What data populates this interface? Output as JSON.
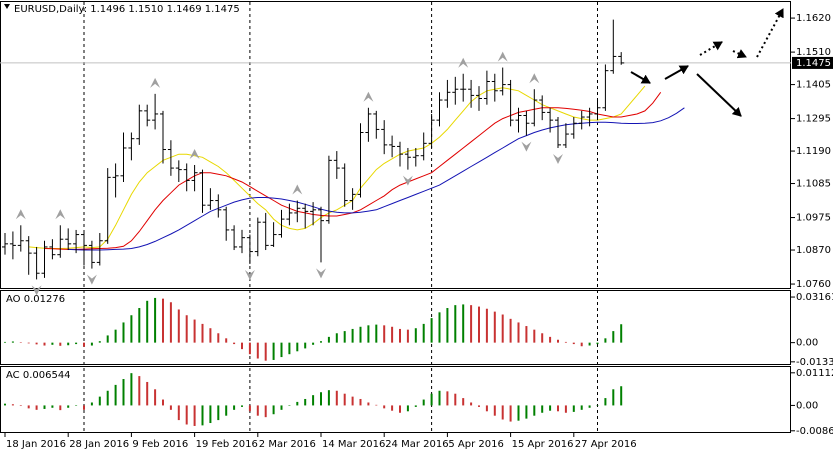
{
  "chart_data": [
    {
      "type": "ohlc",
      "title": "EURUSD,Daily: 1.1496 1.1510 1.1469 1.1475",
      "categories": [
        "18 Jan 2016",
        null,
        null,
        null,
        null,
        null,
        null,
        null,
        "28 Jan 2016",
        null,
        null,
        null,
        null,
        null,
        null,
        null,
        "9 Feb 2016",
        null,
        null,
        null,
        null,
        null,
        null,
        null,
        "19 Feb 2016",
        null,
        null,
        null,
        null,
        null,
        null,
        null,
        "2 Mar 2016",
        null,
        null,
        null,
        null,
        null,
        null,
        null,
        "14 Mar 2016",
        null,
        null,
        null,
        null,
        null,
        null,
        null,
        "24 Mar 2016",
        null,
        null,
        null,
        null,
        null,
        null,
        null,
        "5 Apr 2016",
        null,
        null,
        null,
        null,
        null,
        null,
        null,
        "15 Apr 2016",
        null,
        null,
        null,
        null,
        null,
        null,
        null,
        "27 Apr 2016",
        null,
        null,
        null,
        null,
        null,
        null
      ],
      "bars": [
        [
          1.088,
          1.0925,
          1.0855,
          1.089
        ],
        [
          1.089,
          1.093,
          1.084,
          1.0885
        ],
        [
          1.0885,
          1.095,
          1.0865,
          1.09
        ],
        [
          1.09,
          1.0915,
          1.079,
          1.086
        ],
        [
          1.086,
          1.088,
          1.0775,
          1.0795
        ],
        [
          1.0795,
          1.09,
          1.078,
          1.088
        ],
        [
          1.088,
          1.0905,
          1.084,
          1.0855
        ],
        [
          1.0855,
          1.095,
          1.0845,
          1.0905
        ],
        [
          1.0905,
          1.094,
          1.087,
          1.089
        ],
        [
          1.089,
          1.0935,
          1.086,
          1.092
        ],
        [
          1.092,
          1.093,
          1.082,
          1.0885
        ],
        [
          1.0885,
          1.09,
          1.081,
          1.083
        ],
        [
          1.083,
          1.0925,
          1.082,
          1.09
        ],
        [
          1.09,
          1.1135,
          1.089,
          1.1105
        ],
        [
          1.1105,
          1.115,
          1.104,
          1.111
        ],
        [
          1.111,
          1.125,
          1.109,
          1.12
        ],
        [
          1.12,
          1.125,
          1.116,
          1.123
        ],
        [
          1.123,
          1.134,
          1.121,
          1.132
        ],
        [
          1.132,
          1.134,
          1.127,
          1.129
        ],
        [
          1.129,
          1.1375,
          1.126,
          1.131
        ],
        [
          1.131,
          1.132,
          1.115,
          1.1195
        ],
        [
          1.1195,
          1.1225,
          1.111,
          1.1135
        ],
        [
          1.1135,
          1.116,
          1.109,
          1.113
        ],
        [
          1.113,
          1.115,
          1.106,
          1.1095
        ],
        [
          1.1095,
          1.1145,
          1.106,
          1.112
        ],
        [
          1.112,
          1.113,
          1.099,
          1.1015
        ],
        [
          1.1015,
          1.107,
          1.1,
          1.103
        ],
        [
          1.103,
          1.105,
          1.0975,
          1.1
        ],
        [
          1.1,
          1.101,
          1.09,
          1.0935
        ],
        [
          1.0935,
          1.095,
          1.087,
          1.088
        ],
        [
          1.088,
          1.0935,
          1.086,
          1.091
        ],
        [
          1.091,
          1.092,
          1.0825,
          1.0865
        ],
        [
          1.0865,
          1.0975,
          1.085,
          1.096
        ],
        [
          1.096,
          1.099,
          1.087,
          1.0885
        ],
        [
          1.0885,
          1.096,
          1.088,
          1.092
        ],
        [
          1.092,
          1.1,
          1.091,
          1.097
        ],
        [
          1.097,
          1.102,
          1.095,
          1.099
        ],
        [
          1.099,
          1.103,
          1.096,
          1.1005
        ],
        [
          1.1005,
          1.102,
          1.094,
          1.0995
        ],
        [
          1.0995,
          1.1025,
          1.095,
          1.1
        ],
        [
          1.1,
          1.101,
          1.083,
          1.0965
        ],
        [
          1.0965,
          1.1175,
          1.0955,
          1.116
        ],
        [
          1.116,
          1.119,
          1.11,
          1.1135
        ],
        [
          1.1135,
          1.115,
          1.101,
          1.103
        ],
        [
          1.103,
          1.107,
          1.1,
          1.105
        ],
        [
          1.105,
          1.128,
          1.104,
          1.125
        ],
        [
          1.125,
          1.133,
          1.122,
          1.131
        ],
        [
          1.131,
          1.132,
          1.123,
          1.126
        ],
        [
          1.126,
          1.129,
          1.118,
          1.121
        ],
        [
          1.121,
          1.124,
          1.117,
          1.1205
        ],
        [
          1.1205,
          1.122,
          1.114,
          1.118
        ],
        [
          1.118,
          1.12,
          1.113,
          1.117
        ],
        [
          1.117,
          1.12,
          1.114,
          1.1175
        ],
        [
          1.1175,
          1.125,
          1.116,
          1.1215
        ],
        [
          1.1215,
          1.131,
          1.12,
          1.129
        ],
        [
          1.129,
          1.138,
          1.127,
          1.1355
        ],
        [
          1.1355,
          1.142,
          1.133,
          1.138
        ],
        [
          1.138,
          1.143,
          1.134,
          1.139
        ],
        [
          1.139,
          1.144,
          1.135,
          1.139
        ],
        [
          1.139,
          1.142,
          1.133,
          1.137
        ],
        [
          1.137,
          1.14,
          1.132,
          1.136
        ],
        [
          1.136,
          1.145,
          1.134,
          1.1415
        ],
        [
          1.1415,
          1.144,
          1.135,
          1.1385
        ],
        [
          1.1385,
          1.146,
          1.137,
          1.1405
        ],
        [
          1.1405,
          1.142,
          1.127,
          1.129
        ],
        [
          1.129,
          1.133,
          1.125,
          1.1305
        ],
        [
          1.1305,
          1.132,
          1.124,
          1.128
        ],
        [
          1.128,
          1.139,
          1.127,
          1.1355
        ],
        [
          1.1355,
          1.137,
          1.129,
          1.1315
        ],
        [
          1.1315,
          1.133,
          1.125,
          1.129
        ],
        [
          1.129,
          1.13,
          1.12,
          1.121
        ],
        [
          1.121,
          1.128,
          1.12,
          1.1245
        ],
        [
          1.1245,
          1.13,
          1.123,
          1.128
        ],
        [
          1.128,
          1.132,
          1.126,
          1.13
        ],
        [
          1.13,
          1.133,
          1.127,
          1.131
        ],
        [
          1.131,
          1.136,
          1.129,
          1.133
        ],
        [
          1.133,
          1.147,
          1.132,
          1.145
        ],
        [
          1.145,
          1.1615,
          1.144,
          1.1496
        ],
        [
          1.1496,
          1.151,
          1.1469,
          1.1475
        ]
      ],
      "bar_color": "#000000",
      "bid": 1.1475,
      "ylim": [
        1.0744,
        1.1672
      ],
      "yticks": [
        {
          "value": 1.162,
          "label": "1.1620"
        },
        {
          "value": 1.151,
          "label": "1.1510"
        },
        1.1405,
        1.1295,
        {
          "value": 1.119,
          "label": "1.1190"
        },
        1.1085,
        1.0975,
        {
          "value": 1.087,
          "label": "1.0870"
        },
        {
          "value": 1.076,
          "label": "1.0760"
        }
      ],
      "separators": [
        10,
        31,
        54,
        75
      ],
      "lines": [
        {
          "color": "#e8d800",
          "shift": 3,
          "values": [
            1.088,
            1.0878,
            1.0876,
            1.0875,
            1.0875,
            1.0876,
            1.0878,
            1.088,
            1.0878,
            1.088,
            1.0905,
            1.095,
            1.1,
            1.105,
            1.109,
            1.112,
            1.114,
            1.116,
            1.117,
            1.118,
            1.118,
            1.1175,
            1.117,
            1.1155,
            1.114,
            1.112,
            1.1095,
            1.107,
            1.1045,
            1.102,
            1.1,
            1.097,
            1.095,
            1.094,
            1.0935,
            1.094,
            1.0955,
            1.0975,
            1.099,
            1.1,
            1.1015,
            1.103,
            1.107,
            1.11,
            1.113,
            1.115,
            1.1165,
            1.118,
            1.119,
            1.1195,
            1.12,
            1.1215,
            1.1235,
            1.126,
            1.129,
            1.132,
            1.135,
            1.137,
            1.1385,
            1.139,
            1.1395,
            1.139,
            1.1385,
            1.137,
            1.1355,
            1.134,
            1.133,
            1.132,
            1.131,
            1.13,
            1.1295,
            1.129,
            1.129,
            1.1295,
            1.13,
            1.131,
            1.134,
            1.137,
            1.14
          ]
        },
        {
          "color": "#e00000",
          "shift": 5,
          "values": [
            1.0875,
            1.0874,
            1.0873,
            1.0872,
            1.0872,
            1.0873,
            1.0874,
            1.0875,
            1.0876,
            1.0878,
            1.0882,
            1.09,
            1.093,
            1.0965,
            1.1,
            1.103,
            1.1055,
            1.108,
            1.1095,
            1.111,
            1.112,
            1.112,
            1.1115,
            1.111,
            1.11,
            1.109,
            1.1075,
            1.106,
            1.1045,
            1.103,
            1.1015,
            1.1005,
            1.0995,
            1.099,
            1.0985,
            1.0982,
            1.098,
            1.098,
            1.0985,
            1.099,
            1.1,
            1.1015,
            1.103,
            1.1045,
            1.1065,
            1.108,
            1.109,
            1.11,
            1.111,
            1.112,
            1.114,
            1.116,
            1.118,
            1.12,
            1.122,
            1.124,
            1.126,
            1.128,
            1.1295,
            1.1305,
            1.1315,
            1.132,
            1.1325,
            1.133,
            1.133,
            1.133,
            1.1328,
            1.1325,
            1.1322,
            1.1318,
            1.131,
            1.1305,
            1.13,
            1.13,
            1.1305,
            1.131,
            1.132,
            1.1345,
            1.138
          ]
        },
        {
          "color": "#1414b4",
          "shift": 8,
          "values": [
            1.0872,
            1.0871,
            1.087,
            1.087,
            1.087,
            1.0871,
            1.0872,
            1.0873,
            1.0875,
            1.088,
            1.0888,
            1.0898,
            1.091,
            1.0922,
            1.0935,
            1.095,
            1.0965,
            1.098,
            1.0995,
            1.1005,
            1.1015,
            1.1025,
            1.1032,
            1.1038,
            1.104,
            1.104,
            1.1038,
            1.1035,
            1.103,
            1.1025,
            1.1018,
            1.101,
            1.1002,
            1.0996,
            1.0992,
            1.099,
            1.099,
            1.0992,
            1.0996,
            1.1,
            1.101,
            1.102,
            1.103,
            1.104,
            1.105,
            1.106,
            1.107,
            1.108,
            1.1095,
            1.111,
            1.1125,
            1.114,
            1.1155,
            1.117,
            1.1185,
            1.12,
            1.1215,
            1.123,
            1.124,
            1.125,
            1.1258,
            1.1265,
            1.127,
            1.1275,
            1.1278,
            1.128,
            1.1282,
            1.1283,
            1.1283,
            1.1282,
            1.128,
            1.1279,
            1.1279,
            1.128,
            1.1282,
            1.1288,
            1.1298,
            1.1312,
            1.133
          ]
        }
      ],
      "fractal_color": "#a0a0a0",
      "fractals_up": [
        {
          "bar": 2,
          "value": 1.095
        },
        {
          "bar": 7,
          "value": 1.095
        },
        {
          "bar": 19,
          "value": 1.1375
        },
        {
          "bar": 24,
          "value": 1.1145
        },
        {
          "bar": 37,
          "value": 1.103
        },
        {
          "bar": 46,
          "value": 1.133
        },
        {
          "bar": 58,
          "value": 1.144
        },
        {
          "bar": 63,
          "value": 1.146
        },
        {
          "bar": 67,
          "value": 1.139
        }
      ],
      "fractals_down": [
        {
          "bar": 4,
          "value": 1.0775
        },
        {
          "bar": 11,
          "value": 1.081
        },
        {
          "bar": 31,
          "value": 1.0825
        },
        {
          "bar": 40,
          "value": 1.083
        },
        {
          "bar": 51,
          "value": 1.113
        },
        {
          "bar": 66,
          "value": 1.124
        },
        {
          "bar": 70,
          "value": 1.12
        }
      ]
    },
    {
      "type": "histogram",
      "title": "AO 0.01276",
      "values": [
        0.0005,
        0.0008,
        0.0003,
        -0.0005,
        -0.0012,
        -0.002,
        -0.0015,
        -0.0022,
        -0.0018,
        -0.001,
        -0.0028,
        -0.002,
        0.001,
        0.005,
        0.009,
        0.014,
        0.019,
        0.024,
        0.029,
        0.031,
        0.0305,
        0.028,
        0.023,
        0.019,
        0.016,
        0.013,
        0.01,
        0.0065,
        0.003,
        -0.001,
        -0.0045,
        -0.008,
        -0.011,
        -0.0125,
        -0.012,
        -0.01,
        -0.008,
        -0.006,
        -0.004,
        -0.0015,
        0.001,
        0.004,
        0.0065,
        0.008,
        0.0095,
        0.011,
        0.012,
        0.0125,
        0.012,
        0.011,
        0.0095,
        0.009,
        0.01,
        0.013,
        0.017,
        0.021,
        0.024,
        0.026,
        0.0265,
        0.026,
        0.025,
        0.0235,
        0.0215,
        0.0195,
        0.0165,
        0.014,
        0.0115,
        0.009,
        0.0065,
        0.004,
        0.002,
        0.0005,
        -0.001,
        -0.0025,
        -0.002,
        -0.001,
        0.003,
        0.008,
        0.01276
      ],
      "ylim": [
        -0.0155,
        0.0358
      ],
      "yticks": [
        0.03161,
        {
          "value": 0,
          "label": "0.00"
        },
        -0.0133
      ],
      "rise_color": "#008000",
      "fall_color": "#c83232"
    },
    {
      "type": "histogram",
      "title": "AC 0.006544",
      "values": [
        0.0006,
        0.0004,
        -0.0002,
        -0.001,
        -0.0015,
        -0.0012,
        -0.0008,
        -0.0016,
        -0.0008,
        0.0,
        -0.0015,
        0.001,
        0.003,
        0.005,
        0.007,
        0.009,
        0.011,
        0.01,
        0.008,
        0.0055,
        0.002,
        -0.0015,
        -0.005,
        -0.0065,
        -0.007,
        -0.0068,
        -0.006,
        -0.005,
        -0.0035,
        -0.0015,
        -0.0005,
        -0.002,
        -0.0035,
        -0.004,
        -0.003,
        -0.0015,
        0.0,
        0.0012,
        0.0022,
        0.0035,
        0.0045,
        0.0052,
        0.005,
        0.004,
        0.003,
        0.0022,
        0.001,
        0.0002,
        -0.001,
        -0.0018,
        -0.0025,
        -0.002,
        -0.0005,
        0.002,
        0.004,
        0.005,
        0.0048,
        0.004,
        0.0025,
        0.001,
        -0.0005,
        -0.002,
        -0.0035,
        -0.0048,
        -0.0055,
        -0.0052,
        -0.0045,
        -0.0035,
        -0.0025,
        -0.0018,
        -0.002,
        -0.0025,
        -0.0022,
        -0.0015,
        -0.0008,
        0.0,
        0.0025,
        0.0055,
        0.006544
      ],
      "ylim": [
        -0.0094,
        0.0131
      ],
      "yticks": [
        0.01112,
        {
          "value": 0,
          "label": "0.00"
        },
        -0.00865
      ],
      "rise_color": "#008000",
      "fall_color": "#c83232"
    }
  ]
}
